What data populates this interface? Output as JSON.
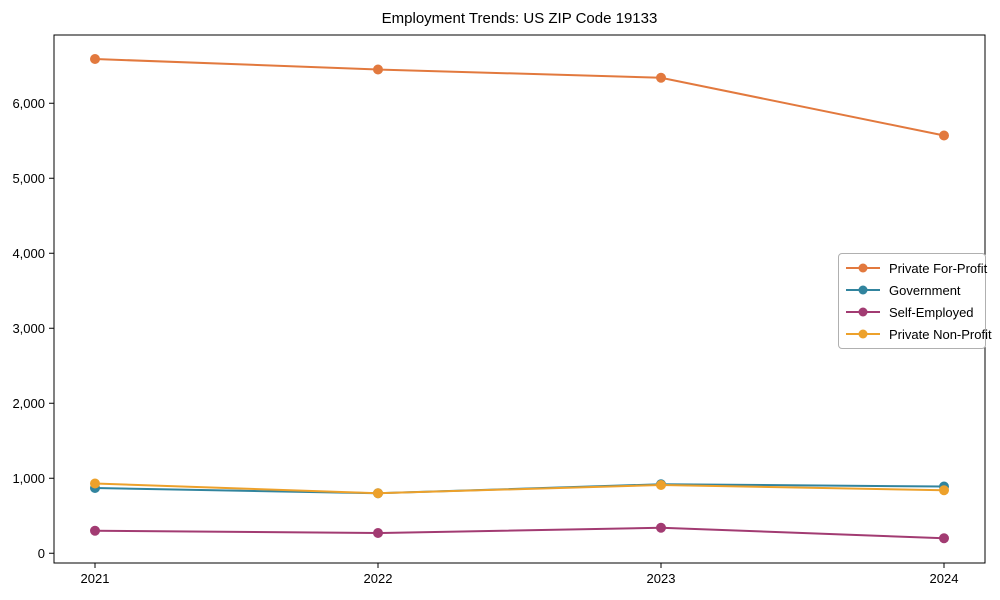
{
  "chart_data": {
    "type": "line",
    "title": "Employment Trends: US ZIP Code 19133",
    "xlabel": "",
    "ylabel": "",
    "grid": false,
    "legend_position": "center-right",
    "x_categories": [
      "2021",
      "2022",
      "2023",
      "2024"
    ],
    "y_tick_values": [
      0,
      1000,
      2000,
      3000,
      4000,
      5000,
      6000
    ],
    "y_tick_labels": [
      "0",
      "1,000",
      "2,000",
      "3,000",
      "4,000",
      "5,000",
      "6,000"
    ],
    "ylim": [
      -130,
      6910
    ],
    "axis_color": "#000000",
    "series": [
      {
        "name": "Private For-Profit",
        "color": "#E2793E",
        "values": [
          6590,
          6450,
          6340,
          5570
        ]
      },
      {
        "name": "Government",
        "color": "#31849E",
        "values": [
          870,
          800,
          920,
          890
        ]
      },
      {
        "name": "Self-Employed",
        "color": "#A23B72",
        "values": [
          300,
          270,
          340,
          200
        ]
      },
      {
        "name": "Private Non-Profit",
        "color": "#EDA12B",
        "values": [
          930,
          800,
          910,
          840
        ]
      }
    ]
  }
}
